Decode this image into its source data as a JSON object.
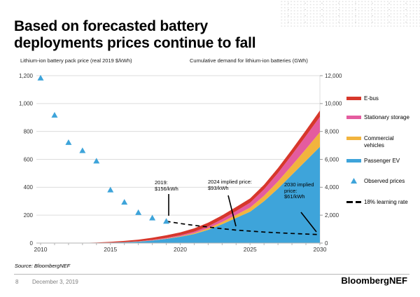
{
  "slide": {
    "title_lines": [
      "Based on forecasted battery",
      "deployments prices continue to fall"
    ],
    "footer": {
      "source": "Source: BloombergNEF",
      "page_number": "8",
      "date": "December 3, 2019",
      "brand": "BloombergNEF"
    }
  },
  "chart_data": {
    "type": "area",
    "subtypes": [
      "stacked-area",
      "scatter",
      "dashed-line"
    ],
    "grid": "horizontal",
    "legend_position": "right",
    "left_axis": {
      "title": "Lithium-ion battery pack price (real 2019 $/kWh)",
      "range": [
        0,
        1200
      ],
      "tick_step": 200,
      "tick_labels": [
        "0",
        "200",
        "400",
        "600",
        "800",
        "1,000",
        "1,200"
      ]
    },
    "right_axis": {
      "title": "Cumulative demand for lithium-ion batteries (GWh)",
      "range": [
        0,
        12000
      ],
      "tick_step": 2000,
      "tick_labels": [
        "0",
        "2,000",
        "4,000",
        "6,000",
        "8,000",
        "10,000",
        "12,000"
      ]
    },
    "x_axis": {
      "range": [
        2010,
        2030
      ],
      "major_tick_labels": [
        "2010",
        "2015",
        "2020",
        "2025",
        "2030"
      ],
      "minor_tick_step": 1
    },
    "observed_prices": {
      "label": "Observed prices",
      "axis": "left",
      "marker": "triangle",
      "color": "#3ea4da",
      "years": [
        2010,
        2011,
        2012,
        2013,
        2014,
        2015,
        2016,
        2017,
        2018,
        2019
      ],
      "values": [
        1183,
        917,
        721,
        663,
        588,
        381,
        293,
        219,
        180,
        156
      ]
    },
    "learning_rate": {
      "label": "18% learning rate",
      "axis": "left",
      "style": "dashed",
      "color": "#000000",
      "years": [
        2019,
        2020,
        2021,
        2022,
        2023,
        2024,
        2025,
        2026,
        2027,
        2028,
        2029,
        2030
      ],
      "values": [
        156,
        140,
        127,
        115,
        103,
        93,
        86,
        79,
        74,
        69,
        65,
        61
      ]
    },
    "stacked_demand": {
      "axis": "right",
      "years": [
        2010,
        2011,
        2012,
        2013,
        2014,
        2015,
        2016,
        2017,
        2018,
        2019,
        2020,
        2021,
        2022,
        2023,
        2024,
        2025,
        2026,
        2027,
        2028,
        2029,
        2030
      ],
      "series": [
        {
          "name": "Passenger EV",
          "color": "#3ea4da",
          "values": [
            1,
            2,
            5,
            10,
            20,
            30,
            55,
            100,
            180,
            300,
            450,
            650,
            950,
            1350,
            1800,
            2250,
            3000,
            3900,
            4900,
            5900,
            6900
          ]
        },
        {
          "name": "Commercial vehicles",
          "color": "#f2b43e",
          "values": [
            0,
            0,
            0,
            0,
            0,
            2,
            4,
            8,
            15,
            25,
            40,
            70,
            110,
            160,
            220,
            290,
            390,
            520,
            670,
            850,
            1050
          ]
        },
        {
          "name": "Stationary storage",
          "color": "#e45c9f",
          "values": [
            0,
            0,
            0,
            0,
            2,
            5,
            10,
            18,
            30,
            45,
            65,
            95,
            140,
            200,
            270,
            350,
            460,
            600,
            760,
            930,
            1100
          ]
        },
        {
          "name": "E-bus",
          "color": "#d7372b",
          "values": [
            0,
            1,
            2,
            5,
            15,
            55,
            85,
            120,
            155,
            185,
            215,
            240,
            260,
            280,
            295,
            310,
            330,
            355,
            380,
            410,
            450
          ]
        }
      ]
    },
    "annotations": [
      {
        "id": "a2019",
        "lines": [
          "2019:",
          "$156/kWh"
        ],
        "target_year": 2019,
        "target_value": 156
      },
      {
        "id": "a2024",
        "lines": [
          "2024 implied price:",
          "$93/kWh"
        ],
        "target_year": 2024,
        "target_value": 93
      },
      {
        "id": "a2030",
        "lines": [
          "2030 implied",
          "price:",
          "$61/kWh"
        ],
        "target_year": 2030,
        "target_value": 61
      }
    ]
  },
  "legend": {
    "items": [
      {
        "label": "E-bus",
        "swatch": "line",
        "color": "#d7372b"
      },
      {
        "label": "Stationary storage",
        "swatch": "line",
        "color": "#e45c9f"
      },
      {
        "label": "Commercial vehicles",
        "swatch": "line",
        "color": "#f2b43e"
      },
      {
        "label": "Passenger EV",
        "swatch": "line",
        "color": "#3ea4da"
      },
      {
        "label": "Observed prices",
        "swatch": "triangle",
        "color": "#3ea4da"
      },
      {
        "label": "18% learning rate",
        "swatch": "dashes",
        "color": "#000000"
      }
    ]
  }
}
